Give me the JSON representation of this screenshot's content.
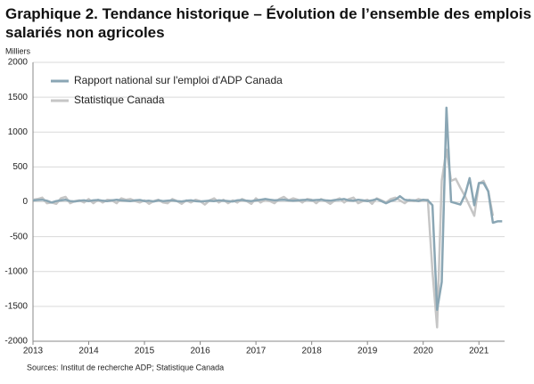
{
  "chart_data": {
    "type": "line",
    "title": "Graphique 2. Tendance historique – Évolution de l’ensemble des emplois salariés non agricoles",
    "y_unit_label": "Milliers",
    "source": "Sources: Institut de recherche ADP; Statistique Canada",
    "xlim": [
      2013,
      2021.46
    ],
    "xticks": [
      2013,
      2014,
      2015,
      2016,
      2017,
      2018,
      2019,
      2020,
      2021
    ],
    "ylim": [
      -2000,
      2000
    ],
    "yticks": [
      -2000,
      -1500,
      -1000,
      -500,
      0,
      500,
      1000,
      1500,
      2000
    ],
    "grid": true,
    "legend": "upper-left",
    "x": [
      2013,
      2013.083,
      2013.167,
      2013.25,
      2013.333,
      2013.417,
      2013.5,
      2013.583,
      2013.667,
      2013.75,
      2013.833,
      2013.917,
      2014,
      2014.083,
      2014.167,
      2014.25,
      2014.333,
      2014.417,
      2014.5,
      2014.583,
      2014.667,
      2014.75,
      2014.833,
      2014.917,
      2015,
      2015.083,
      2015.167,
      2015.25,
      2015.333,
      2015.417,
      2015.5,
      2015.583,
      2015.667,
      2015.75,
      2015.833,
      2015.917,
      2016,
      2016.083,
      2016.167,
      2016.25,
      2016.333,
      2016.417,
      2016.5,
      2016.583,
      2016.667,
      2016.75,
      2016.833,
      2016.917,
      2017,
      2017.083,
      2017.167,
      2017.25,
      2017.333,
      2017.417,
      2017.5,
      2017.583,
      2017.667,
      2017.75,
      2017.833,
      2017.917,
      2018,
      2018.083,
      2018.167,
      2018.25,
      2018.333,
      2018.417,
      2018.5,
      2018.583,
      2018.667,
      2018.75,
      2018.833,
      2018.917,
      2019,
      2019.083,
      2019.167,
      2019.25,
      2019.333,
      2019.417,
      2019.5,
      2019.583,
      2019.667,
      2019.75,
      2019.833,
      2019.917,
      2020,
      2020.083,
      2020.167,
      2020.25,
      2020.333,
      2020.417,
      2020.5,
      2020.583,
      2020.667,
      2020.75,
      2020.833,
      2020.917,
      2021,
      2021.083,
      2021.167,
      2021.25,
      2021.333,
      2021.417
    ],
    "series": [
      {
        "name": "Rapport national sur l'emploi d'ADP Canada",
        "color": "#8aa6b4",
        "values": [
          20,
          25,
          30,
          15,
          -10,
          10,
          20,
          30,
          10,
          5,
          15,
          20,
          10,
          20,
          25,
          15,
          10,
          20,
          30,
          20,
          15,
          10,
          20,
          25,
          10,
          15,
          5,
          20,
          10,
          15,
          20,
          10,
          5,
          15,
          20,
          10,
          5,
          10,
          15,
          10,
          20,
          15,
          10,
          5,
          20,
          25,
          15,
          10,
          20,
          30,
          40,
          30,
          20,
          25,
          30,
          20,
          15,
          20,
          25,
          30,
          20,
          25,
          30,
          20,
          15,
          25,
          30,
          40,
          20,
          15,
          30,
          20,
          10,
          20,
          40,
          10,
          -20,
          10,
          30,
          80,
          30,
          20,
          20,
          10,
          30,
          20,
          -50,
          -1550,
          -1150,
          1350,
          0,
          -20,
          -40,
          100,
          340,
          -50,
          270,
          270,
          150,
          -300,
          -280,
          -280
        ]
      },
      {
        "name": "Statistique Canada",
        "color": "#c6c6c6",
        "values": [
          30,
          40,
          60,
          -20,
          -10,
          -30,
          50,
          70,
          -20,
          10,
          20,
          -10,
          40,
          -20,
          30,
          -10,
          30,
          20,
          -20,
          50,
          30,
          40,
          10,
          -10,
          20,
          -30,
          10,
          30,
          -10,
          -20,
          40,
          10,
          -30,
          20,
          -10,
          30,
          10,
          -40,
          20,
          50,
          -10,
          30,
          -20,
          20,
          -10,
          40,
          10,
          -30,
          50,
          -10,
          30,
          10,
          -20,
          40,
          70,
          20,
          50,
          30,
          -10,
          40,
          30,
          -20,
          40,
          10,
          -30,
          20,
          50,
          -10,
          40,
          60,
          -20,
          10,
          30,
          -30,
          50,
          20,
          -10,
          40,
          60,
          20,
          -20,
          30,
          10,
          40,
          20,
          30,
          -1000,
          -1800,
          300,
          750,
          300,
          330,
          200,
          80,
          -60,
          -200,
          260,
          300,
          150,
          -200,
          null,
          null
        ]
      }
    ]
  }
}
